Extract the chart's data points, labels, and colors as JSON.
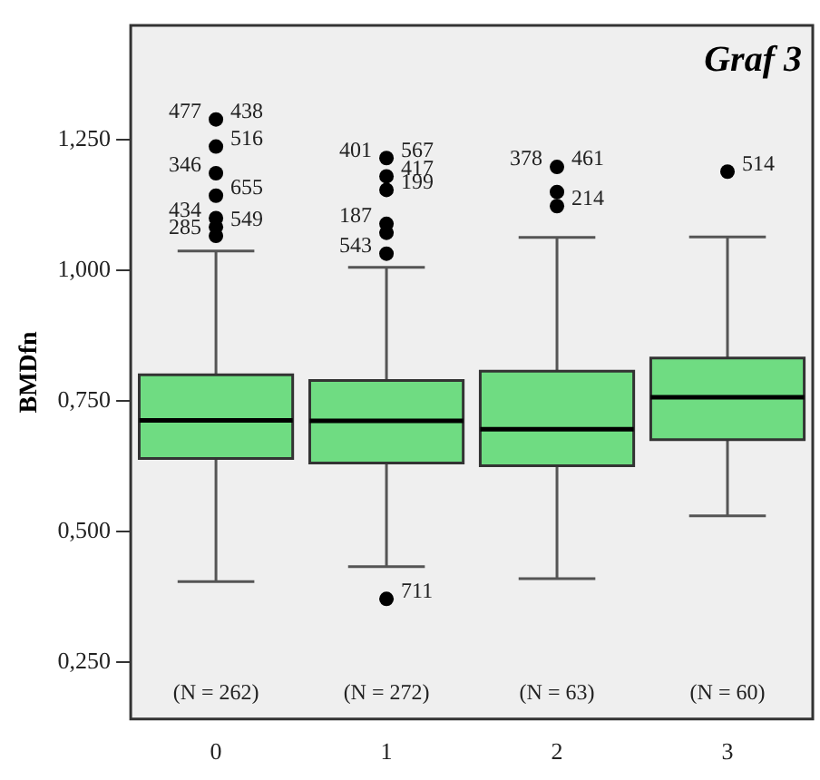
{
  "chart_data": {
    "type": "box",
    "title": "Graf 3",
    "ylabel": "BMDfn",
    "categories": [
      "0",
      "1",
      "2",
      "3"
    ],
    "color": "#6fdc82",
    "boxes": [
      {
        "low": 0.404,
        "q1": 0.64,
        "median": 0.713,
        "q3": 0.8,
        "high": 1.037
      },
      {
        "low": 0.433,
        "q1": 0.631,
        "median": 0.712,
        "q3": 0.789,
        "high": 1.006
      },
      {
        "low": 0.41,
        "q1": 0.626,
        "median": 0.696,
        "q3": 0.807,
        "high": 1.063
      },
      {
        "low": 0.53,
        "q1": 0.676,
        "median": 0.757,
        "q3": 0.832,
        "high": 1.064
      }
    ],
    "series": [
      {
        "type": "scatter",
        "color": "#000000",
        "x": [
          "0",
          "0",
          "0",
          "0",
          "0",
          "0",
          "0",
          "1",
          "1",
          "1",
          "1",
          "1",
          "1",
          "1",
          "2",
          "2",
          "2",
          "3"
        ],
        "values": [
          1.289,
          1.237,
          1.186,
          1.143,
          1.1,
          1.083,
          1.066,
          1.215,
          1.18,
          1.154,
          1.089,
          1.072,
          1.032,
          0.371,
          1.198,
          1.15,
          1.123,
          1.189
        ]
      }
    ],
    "marker": "circle",
    "ylim": [
      0.141,
      1.469
    ],
    "yticks": [
      {
        "value": 0.25,
        "label": "0,250"
      },
      {
        "value": 0.5,
        "label": "0,500"
      },
      {
        "value": 0.75,
        "label": "0,750"
      },
      {
        "value": 1.0,
        "label": "1,000"
      },
      {
        "value": 1.25,
        "label": "1,250"
      }
    ],
    "grid": false,
    "legend": false,
    "annotations": [
      {
        "text": "438",
        "x": "0",
        "y": 1.289
      },
      {
        "text": "477",
        "x": "0",
        "y": 1.289
      },
      {
        "text": "516",
        "x": "0",
        "y": 1.237
      },
      {
        "text": "346",
        "x": "0",
        "y": 1.186
      },
      {
        "text": "655",
        "x": "0",
        "y": 1.143
      },
      {
        "text": "434",
        "x": "0",
        "y": 1.1
      },
      {
        "text": "549",
        "x": "0",
        "y": 1.083
      },
      {
        "text": "285",
        "x": "0",
        "y": 1.066
      },
      {
        "text": "567",
        "x": "1",
        "y": 1.215
      },
      {
        "text": "401",
        "x": "1",
        "y": 1.215
      },
      {
        "text": "417",
        "x": "1",
        "y": 1.18
      },
      {
        "text": "187",
        "x": "1",
        "y": 1.089
      },
      {
        "text": "199",
        "x": "1",
        "y": 1.154
      },
      {
        "text": "543",
        "x": "1",
        "y": 1.032
      },
      {
        "text": "711",
        "x": "1",
        "y": 0.371
      },
      {
        "text": "461",
        "x": "2",
        "y": 1.198
      },
      {
        "text": "378",
        "x": "2",
        "y": 1.198
      },
      {
        "text": "214",
        "x": "2",
        "y": 1.123
      },
      {
        "text": "514",
        "x": "3",
        "y": 1.189
      },
      "(N = 262)",
      "(N = 272)",
      "(N = 63)",
      "(N = 60)"
    ]
  }
}
